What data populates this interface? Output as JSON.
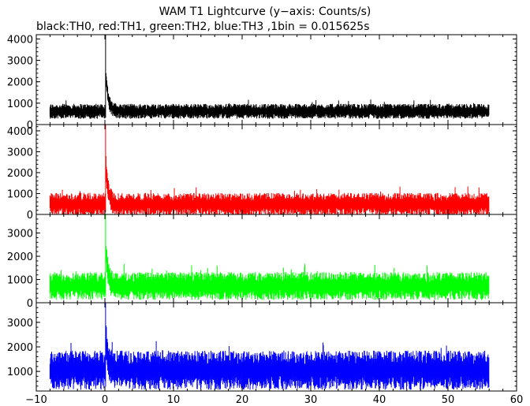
{
  "title": "WAM T1 Lightcurve (y−axis: Counts/s)",
  "subtitle": "black:TH0, red:TH1, green:TH2, blue:TH3 ,1bin = 0.015625s",
  "chart_data": {
    "type": "line",
    "title": "WAM T1 Lightcurve (y−axis: Counts/s)",
    "subtitle": "black:TH0, red:TH1, green:TH2, blue:TH3 ,1bin = 0.015625s",
    "xlabel": "",
    "ylabel": "",
    "xlim": [
      -10,
      60
    ],
    "x_ticks": [
      -10,
      0,
      10,
      20,
      30,
      40,
      50,
      60
    ],
    "bin_s": 0.015625,
    "data_range_x": [
      -8,
      56
    ],
    "panels": [
      {
        "series": "TH0",
        "color": "#000000",
        "ylim": [
          0,
          4200
        ],
        "y_ticks": [
          0,
          1000,
          2000,
          3000,
          4000
        ],
        "peak_x": 0.1,
        "peak_y": 4200,
        "mean_level": 620,
        "band": [
          300,
          1000
        ]
      },
      {
        "series": "TH1",
        "color": "#ff0000",
        "ylim": [
          0,
          4300
        ],
        "y_ticks": [
          0,
          1000,
          2000,
          3000,
          4000
        ],
        "peak_x": 0.1,
        "peak_y": 4300,
        "mean_level": 480,
        "band": [
          200,
          1300
        ]
      },
      {
        "series": "TH2",
        "color": "#00ff00",
        "ylim": [
          0,
          3800
        ],
        "y_ticks": [
          0,
          1000,
          2000,
          3000
        ],
        "peak_x": 0.1,
        "peak_y": 3800,
        "mean_level": 720,
        "band": [
          300,
          1500
        ]
      },
      {
        "series": "TH3",
        "color": "#0000ff",
        "ylim": [
          200,
          3800
        ],
        "y_ticks": [
          1000,
          2000,
          3000
        ],
        "peak_x": 0.1,
        "peak_y": 3800,
        "mean_level": 1050,
        "band": [
          500,
          2100
        ]
      }
    ]
  }
}
